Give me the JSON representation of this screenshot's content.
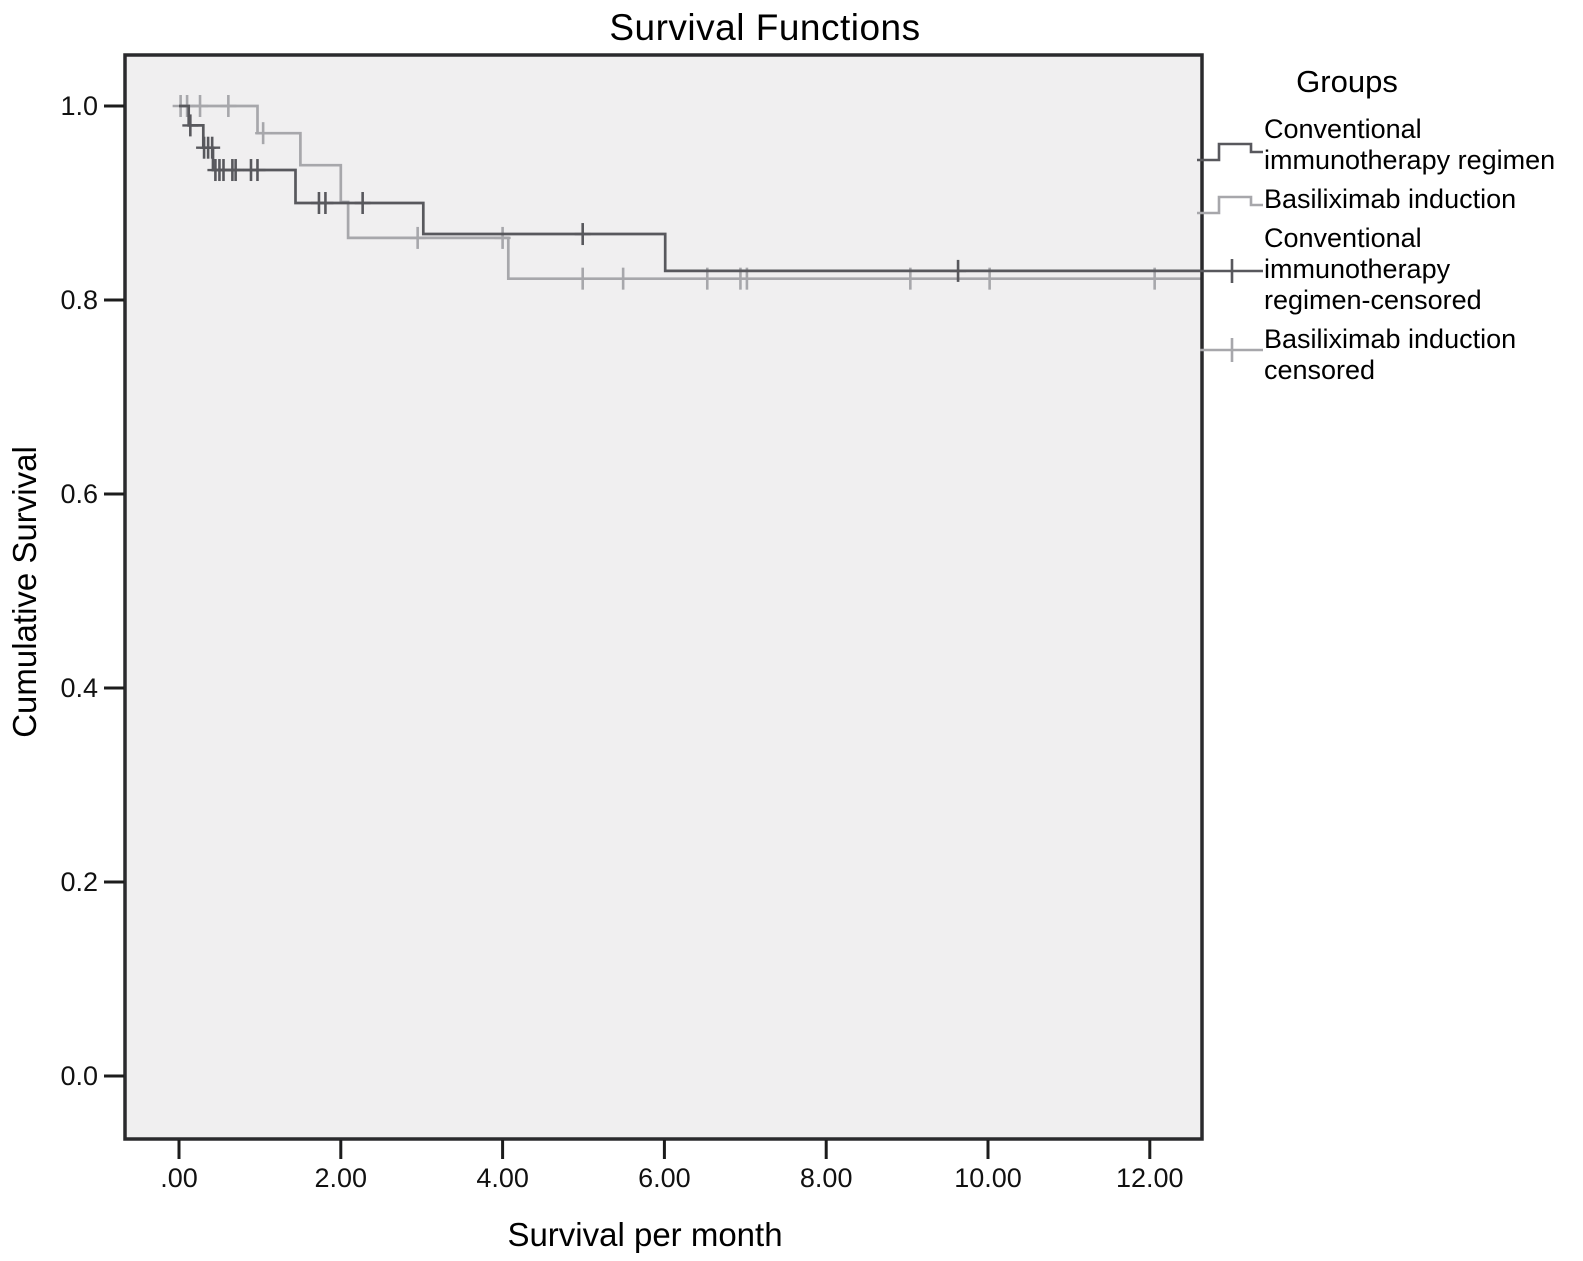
{
  "chart_data": {
    "type": "line",
    "subtype": "kaplan-meier-step",
    "title": "Survival Functions",
    "xlabel": "Survival per month",
    "ylabel": "Cumulative Survival",
    "xlim": [
      -0.67,
      12.65
    ],
    "ylim": [
      -0.065,
      1.053
    ],
    "grid": false,
    "plot_bg": "#f0eff0",
    "frame_color": "#2a2a2d",
    "tick_color": "#1c1c1c",
    "x_ticks": [
      {
        "value": 0,
        "label": ".00"
      },
      {
        "value": 2,
        "label": "2.00"
      },
      {
        "value": 4,
        "label": "4.00"
      },
      {
        "value": 6,
        "label": "6.00"
      },
      {
        "value": 8,
        "label": "8.00"
      },
      {
        "value": 10,
        "label": "10.00"
      },
      {
        "value": 12,
        "label": "12.00"
      }
    ],
    "y_ticks": [
      {
        "value": 1.0,
        "label": "1.0"
      },
      {
        "value": 0.8,
        "label": "0.8"
      },
      {
        "value": 0.6,
        "label": "0.6"
      },
      {
        "value": 0.4,
        "label": "0.4"
      },
      {
        "value": 0.2,
        "label": "0.2"
      },
      {
        "value": 0.0,
        "label": "0.0"
      }
    ],
    "series": [
      {
        "name": "Conventional immunotherapy regimen",
        "color": "#58585d",
        "points": [
          [
            0,
            1.0
          ],
          [
            0.12,
            0.98
          ],
          [
            0.3,
            0.957
          ],
          [
            0.42,
            0.934
          ],
          [
            1.44,
            0.9
          ],
          [
            3.02,
            0.868
          ],
          [
            6.01,
            0.83
          ],
          [
            12.64,
            0.83
          ]
        ],
        "censored": [
          [
            0.14,
            0.98
          ],
          [
            0.31,
            0.957
          ],
          [
            0.36,
            0.957
          ],
          [
            0.41,
            0.957
          ],
          [
            0.45,
            0.934
          ],
          [
            0.5,
            0.934
          ],
          [
            0.55,
            0.934
          ],
          [
            0.66,
            0.934
          ],
          [
            0.7,
            0.934
          ],
          [
            0.89,
            0.934
          ],
          [
            0.97,
            0.934
          ],
          [
            1.73,
            0.9
          ],
          [
            1.81,
            0.9
          ],
          [
            2.27,
            0.9
          ],
          [
            4.99,
            0.868
          ],
          [
            9.63,
            0.83
          ]
        ]
      },
      {
        "name": "Basiliximab induction",
        "color": "#a7a7ab",
        "points": [
          [
            0,
            1.0
          ],
          [
            0.97,
            0.972
          ],
          [
            1.5,
            0.939
          ],
          [
            2.0,
            0.901
          ],
          [
            2.09,
            0.864
          ],
          [
            4.07,
            0.822
          ],
          [
            12.64,
            0.822
          ]
        ],
        "censored": [
          [
            0.02,
            1.0
          ],
          [
            0.1,
            1.0
          ],
          [
            0.26,
            1.0
          ],
          [
            0.61,
            1.0
          ],
          [
            1.04,
            0.972
          ],
          [
            2.95,
            0.864
          ],
          [
            4.0,
            0.864
          ],
          [
            4.99,
            0.822
          ],
          [
            5.49,
            0.822
          ],
          [
            6.53,
            0.822
          ],
          [
            6.94,
            0.822
          ],
          [
            7.02,
            0.822
          ],
          [
            9.04,
            0.822
          ],
          [
            10.02,
            0.822
          ],
          [
            12.06,
            0.822
          ]
        ]
      }
    ],
    "legend": {
      "title": "Groups",
      "position": "right",
      "entries": [
        {
          "label": "Conventional immunotherapy regimen",
          "marker": "step",
          "color": "#58585d"
        },
        {
          "label": "Basiliximab induction",
          "marker": "step",
          "color": "#a7a7ab"
        },
        {
          "label": "Conventional immunotherapy regimen-censored",
          "marker": "plus",
          "color": "#58585d"
        },
        {
          "label": "Basiliximab induction censored",
          "marker": "plus",
          "color": "#a7a7ab"
        }
      ]
    }
  }
}
